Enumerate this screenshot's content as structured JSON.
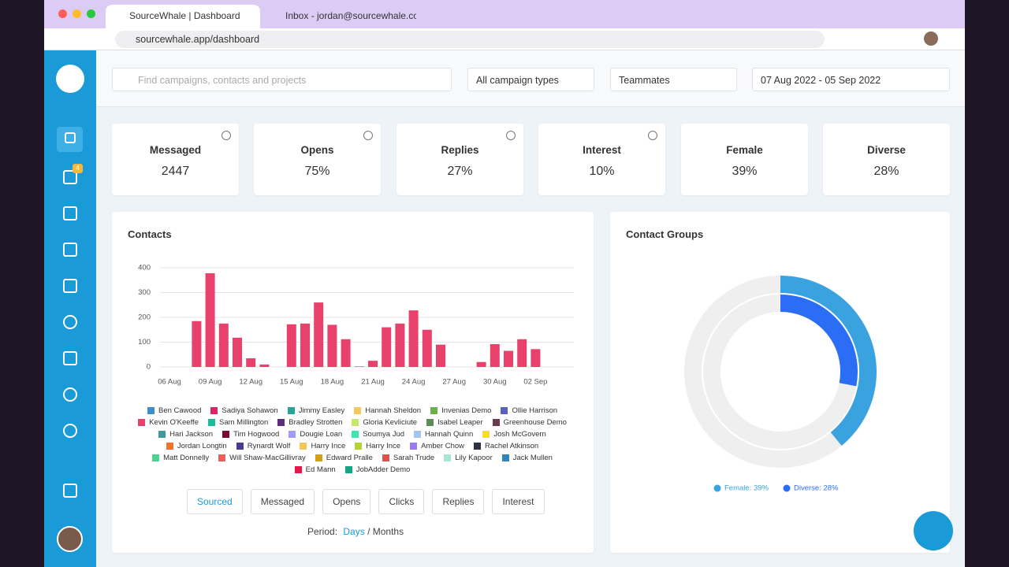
{
  "browser": {
    "tabs": [
      "SourceWhale | Dashboard",
      "Inbox - jordan@sourcewhale.co"
    ],
    "url": "sourcewhale.app/dashboard"
  },
  "toolbar": {
    "search_placeholder": "Find campaigns, contacts and projects",
    "campaign_filter": "All campaign types",
    "team_filter": "Teammates",
    "date_range": "07 Aug 2022 - 05 Sep 2022"
  },
  "sidebar": {
    "badge": "4"
  },
  "stats": [
    {
      "label": "Messaged",
      "value": "2447"
    },
    {
      "label": "Opens",
      "value": "75%"
    },
    {
      "label": "Replies",
      "value": "27%"
    },
    {
      "label": "Interest",
      "value": "10%"
    },
    {
      "label": "Female",
      "value": "39%"
    },
    {
      "label": "Diverse",
      "value": "28%"
    }
  ],
  "chart_data": [
    {
      "type": "bar",
      "title": "Contacts",
      "categories": [
        "06 Aug",
        null,
        null,
        "09 Aug",
        null,
        null,
        "12 Aug",
        null,
        null,
        "15 Aug",
        null,
        null,
        "18 Aug",
        null,
        null,
        "21 Aug",
        null,
        null,
        "24 Aug",
        null,
        null,
        "27 Aug",
        null,
        null,
        "30 Aug",
        null,
        null,
        "02 Sep"
      ],
      "values": [
        0,
        0,
        185,
        378,
        175,
        118,
        35,
        10,
        0,
        172,
        175,
        260,
        170,
        112,
        2,
        25,
        160,
        175,
        228,
        150,
        90,
        0,
        0,
        20,
        92,
        65,
        112,
        72
      ],
      "color": "#e8416b",
      "ylim": [
        0,
        400
      ],
      "yticks": [
        0,
        100,
        200,
        300,
        400
      ],
      "grid": true,
      "legend": [
        {
          "name": "Ben Cawood",
          "color": "#3b8fd0"
        },
        {
          "name": "Sadiya Sohawon",
          "color": "#e0245e"
        },
        {
          "name": "Jimmy Easley",
          "color": "#26a69a"
        },
        {
          "name": "Hannah Sheldon",
          "color": "#f6c85f"
        },
        {
          "name": "Invenias Demo",
          "color": "#6ab04c"
        },
        {
          "name": "Ollie Harrison",
          "color": "#5b5fc7"
        },
        {
          "name": "Kevin O'Keeffe",
          "color": "#e8416b"
        },
        {
          "name": "Sam Millington",
          "color": "#1abc9c"
        },
        {
          "name": "Bradley Strotten",
          "color": "#5e2d79"
        },
        {
          "name": "Gloria Kevliciute",
          "color": "#c5e86c"
        },
        {
          "name": "Isabel Leaper",
          "color": "#5b8c5a"
        },
        {
          "name": "Greenhouse Demo",
          "color": "#6d3b47"
        },
        {
          "name": "Hari Jackson",
          "color": "#3f9aa0"
        },
        {
          "name": "Tim Hogwood",
          "color": "#7a0b2e"
        },
        {
          "name": "Dougie Loan",
          "color": "#a29bfe"
        },
        {
          "name": "Soumya Jud",
          "color": "#3ee6a8"
        },
        {
          "name": "Hannah Quinn",
          "color": "#a3c4f3"
        },
        {
          "name": "Josh McGovern",
          "color": "#f5e11b"
        },
        {
          "name": "Jordan Longtin",
          "color": "#f0742e"
        },
        {
          "name": "Rynardt Wolf",
          "color": "#4b3a8f"
        },
        {
          "name": "Harry Ince",
          "color": "#f2c75c"
        },
        {
          "name": "Harry Ince",
          "color": "#b5d334"
        },
        {
          "name": "Amber Chow",
          "color": "#9b7cf0"
        },
        {
          "name": "Rachel Atkinson",
          "color": "#2d3142"
        },
        {
          "name": "Matt Donnelly",
          "color": "#4cd48e"
        },
        {
          "name": "Will Shaw-MacGillivray",
          "color": "#e8605c"
        },
        {
          "name": "Edward Pralle",
          "color": "#d4a017"
        },
        {
          "name": "Sarah Trude",
          "color": "#d9534f"
        },
        {
          "name": "Lily Kapoor",
          "color": "#a8e6cf"
        },
        {
          "name": "Jack Mullen",
          "color": "#2e86c1"
        },
        {
          "name": "Ed Mann",
          "color": "#e8174b"
        },
        {
          "name": "JobAdder Demo",
          "color": "#17a589"
        }
      ],
      "buttons": [
        "Sourced",
        "Messaged",
        "Opens",
        "Clicks",
        "Replies",
        "Interest"
      ],
      "period": {
        "label": "Period:",
        "days": "Days",
        "separator": "/",
        "months": "Months"
      }
    },
    {
      "type": "donut",
      "title": "Contact Groups",
      "values": [
        39,
        28
      ],
      "value_labels": [
        "Female: 39%",
        "Diverse: 28%"
      ],
      "colors": [
        "#3aa3df",
        "#2b6ef5"
      ]
    }
  ]
}
